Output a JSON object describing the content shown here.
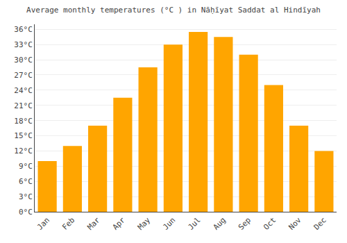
{
  "chart_data": {
    "type": "bar",
    "title": "Average monthly temperatures (°C ) in Nāḥīyat Saddat al Hindīyah",
    "categories": [
      "Jan",
      "Feb",
      "Mar",
      "Apr",
      "May",
      "Jun",
      "Jul",
      "Aug",
      "Sep",
      "Oct",
      "Nov",
      "Dec"
    ],
    "values": [
      10,
      13,
      17,
      22.5,
      28.5,
      33,
      35.5,
      34.5,
      31,
      25,
      17,
      12
    ],
    "color": "#FFA500",
    "ylim": [
      0,
      37
    ],
    "yticks": [
      {
        "value": 0,
        "label": "0°C"
      },
      {
        "value": 3,
        "label": "3°C"
      },
      {
        "value": 6,
        "label": "6°C"
      },
      {
        "value": 9,
        "label": "9°C"
      },
      {
        "value": 12,
        "label": "12°C"
      },
      {
        "value": 15,
        "label": "15°C"
      },
      {
        "value": 18,
        "label": "18°C"
      },
      {
        "value": 21,
        "label": "21°C"
      },
      {
        "value": 24,
        "label": "24°C"
      },
      {
        "value": 27,
        "label": "27°C"
      },
      {
        "value": 30,
        "label": "30°C"
      },
      {
        "value": 33,
        "label": "33°C"
      },
      {
        "value": 36,
        "label": "36°C"
      }
    ],
    "grid": true
  }
}
